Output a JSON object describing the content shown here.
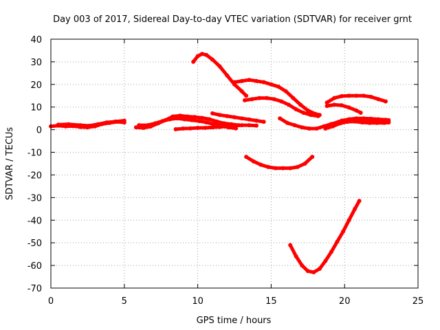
{
  "chart_data": {
    "type": "scatter",
    "title": "Day 003 of 2017, Sidereal Day-to-day VTEC variation (SDTVAR) for receiver grnt",
    "xlabel": "GPS time / hours",
    "ylabel": "SDTVAR / TECUs",
    "xlim": [
      0,
      25
    ],
    "ylim": [
      -70,
      40
    ],
    "xticks": [
      0,
      5,
      10,
      15,
      20,
      25
    ],
    "yticks": [
      -70,
      -60,
      -50,
      -40,
      -30,
      -20,
      -10,
      0,
      10,
      20,
      30,
      40
    ],
    "grid": true,
    "legend": "none",
    "color": "#ff0000",
    "series": [
      {
        "points": [
          [
            0,
            1.5
          ],
          [
            0.5,
            1.8
          ],
          [
            1,
            1.5
          ],
          [
            1.5,
            1.6
          ],
          [
            2,
            1.2
          ],
          [
            2.5,
            1.0
          ],
          [
            3,
            1.5
          ],
          [
            3.5,
            2.5
          ],
          [
            4,
            3.0
          ],
          [
            4.5,
            3.5
          ],
          [
            5,
            3.2
          ]
        ]
      },
      {
        "points": [
          [
            0.5,
            2.2
          ],
          [
            1.2,
            2.4
          ],
          [
            2,
            2.0
          ],
          [
            2.6,
            1.7
          ],
          [
            3.2,
            2.4
          ],
          [
            3.8,
            3.2
          ],
          [
            4.4,
            3.6
          ],
          [
            5,
            4.0
          ]
        ]
      },
      {
        "points": [
          [
            5.8,
            1.0
          ],
          [
            6.3,
            0.8
          ],
          [
            6.8,
            1.4
          ],
          [
            7.3,
            2.8
          ],
          [
            7.8,
            4.2
          ],
          [
            8.3,
            5.8
          ],
          [
            8.8,
            6.2
          ],
          [
            9.3,
            5.8
          ],
          [
            9.8,
            5.6
          ],
          [
            10.3,
            5.2
          ],
          [
            10.8,
            4.6
          ],
          [
            11.3,
            3.6
          ],
          [
            11.8,
            2.8
          ],
          [
            12.3,
            2.4
          ],
          [
            12.8,
            2.0
          ]
        ]
      },
      {
        "points": [
          [
            6.0,
            2.0
          ],
          [
            6.6,
            2.0
          ],
          [
            7.1,
            2.8
          ],
          [
            7.6,
            3.8
          ],
          [
            8.1,
            4.6
          ],
          [
            8.6,
            5.0
          ],
          [
            9.1,
            4.6
          ],
          [
            9.6,
            4.2
          ],
          [
            10.1,
            3.8
          ],
          [
            10.6,
            3.2
          ],
          [
            11.1,
            2.4
          ],
          [
            11.6,
            1.6
          ],
          [
            12.1,
            1.0
          ],
          [
            12.6,
            0.6
          ]
        ]
      },
      {
        "points": [
          [
            8.5,
            0.2
          ],
          [
            9.0,
            0.5
          ],
          [
            9.5,
            0.6
          ],
          [
            10,
            0.8
          ],
          [
            10.5,
            0.8
          ],
          [
            11,
            1.0
          ],
          [
            11.5,
            1.2
          ],
          [
            12,
            1.5
          ],
          [
            12.5,
            1.8
          ],
          [
            13,
            2.0
          ],
          [
            13.5,
            2.0
          ],
          [
            14,
            1.8
          ]
        ]
      },
      {
        "points": [
          [
            11,
            7.2
          ],
          [
            11.5,
            6.5
          ],
          [
            12,
            6.0
          ],
          [
            12.5,
            5.5
          ],
          [
            13,
            5.0
          ],
          [
            13.5,
            4.5
          ],
          [
            14,
            4.0
          ],
          [
            14.5,
            3.5
          ]
        ]
      },
      {
        "points": [
          [
            9.7,
            30
          ],
          [
            10,
            32.5
          ],
          [
            10.3,
            33.5
          ],
          [
            10.6,
            33
          ],
          [
            11,
            31
          ],
          [
            11.5,
            28
          ],
          [
            12,
            24
          ],
          [
            12.5,
            20
          ],
          [
            13,
            17
          ],
          [
            13.3,
            15
          ]
        ]
      },
      {
        "points": [
          [
            12.5,
            21
          ],
          [
            13,
            21.5
          ],
          [
            13.5,
            22
          ],
          [
            14,
            21.5
          ],
          [
            14.5,
            21
          ],
          [
            15,
            20
          ],
          [
            15.5,
            19
          ],
          [
            16,
            17
          ],
          [
            16.5,
            14
          ],
          [
            17,
            11
          ],
          [
            17.5,
            8.5
          ],
          [
            18,
            7
          ],
          [
            18.3,
            6.5
          ]
        ]
      },
      {
        "points": [
          [
            13.2,
            13
          ],
          [
            13.7,
            13.5
          ],
          [
            14.2,
            14
          ],
          [
            14.7,
            14
          ],
          [
            15.2,
            13.5
          ],
          [
            15.7,
            12.5
          ],
          [
            16.2,
            11
          ],
          [
            16.7,
            9
          ],
          [
            17.2,
            7.5
          ],
          [
            17.7,
            6.5
          ],
          [
            18.2,
            6
          ]
        ]
      },
      {
        "points": [
          [
            13.3,
            -12
          ],
          [
            13.8,
            -14
          ],
          [
            14.3,
            -15.5
          ],
          [
            14.8,
            -16.5
          ],
          [
            15.3,
            -17
          ],
          [
            15.8,
            -17
          ],
          [
            16.3,
            -17
          ],
          [
            16.8,
            -16.5
          ],
          [
            17.3,
            -15
          ],
          [
            17.8,
            -12
          ]
        ]
      },
      {
        "points": [
          [
            15.6,
            5
          ],
          [
            16.1,
            3
          ],
          [
            16.6,
            2
          ],
          [
            17.1,
            1
          ],
          [
            17.6,
            0.5
          ],
          [
            18.1,
            0.5
          ],
          [
            18.6,
            1.5
          ],
          [
            19.1,
            2.5
          ],
          [
            19.6,
            3.5
          ],
          [
            20.1,
            4.0
          ],
          [
            20.6,
            4.0
          ],
          [
            21.1,
            4.0
          ],
          [
            21.6,
            3.8
          ],
          [
            22.1,
            3.6
          ],
          [
            22.6,
            3.5
          ],
          [
            23.0,
            3.4
          ]
        ]
      },
      {
        "points": [
          [
            18.7,
            0.5
          ],
          [
            19.2,
            1.5
          ],
          [
            19.7,
            2.8
          ],
          [
            20.2,
            3.5
          ],
          [
            20.7,
            3.6
          ],
          [
            21.2,
            3.2
          ],
          [
            21.7,
            3.0
          ],
          [
            22.2,
            3.0
          ],
          [
            22.7,
            3.0
          ],
          [
            23.0,
            3.2
          ]
        ]
      },
      {
        "points": [
          [
            19.8,
            4
          ],
          [
            20.3,
            4.6
          ],
          [
            20.8,
            5
          ],
          [
            21.3,
            5
          ],
          [
            21.8,
            4.8
          ],
          [
            22.3,
            4.6
          ],
          [
            22.8,
            4.4
          ],
          [
            23.0,
            4.2
          ]
        ]
      },
      {
        "points": [
          [
            18.8,
            12
          ],
          [
            19.3,
            14
          ],
          [
            19.8,
            14.8
          ],
          [
            20.3,
            15
          ],
          [
            20.8,
            15
          ],
          [
            21.3,
            15
          ],
          [
            21.8,
            14.5
          ],
          [
            22.3,
            13.5
          ],
          [
            22.8,
            12.5
          ]
        ]
      },
      {
        "points": [
          [
            18.8,
            10.5
          ],
          [
            19.3,
            11
          ],
          [
            19.8,
            10.8
          ],
          [
            20.3,
            9.8
          ],
          [
            20.8,
            8.5
          ],
          [
            21.1,
            7.5
          ]
        ]
      },
      {
        "points": [
          [
            16.3,
            -51
          ],
          [
            16.7,
            -56
          ],
          [
            17.1,
            -60
          ],
          [
            17.5,
            -62.5
          ],
          [
            17.9,
            -63
          ],
          [
            18.3,
            -61.5
          ],
          [
            18.7,
            -58
          ],
          [
            19.1,
            -54
          ],
          [
            19.5,
            -49.5
          ],
          [
            19.9,
            -45
          ],
          [
            20.3,
            -40
          ],
          [
            20.7,
            -35
          ],
          [
            21.0,
            -31.5
          ]
        ]
      }
    ]
  }
}
